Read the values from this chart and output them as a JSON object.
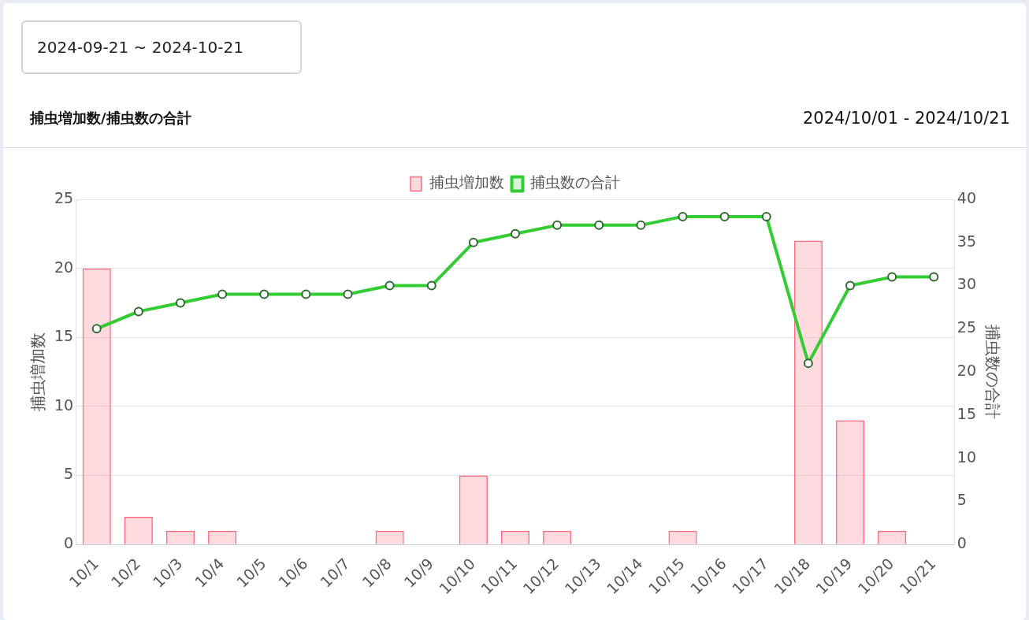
{
  "chart_data": {
    "type": "bar",
    "title": "捕虫増加数/捕虫数の合計",
    "annotations": [
      "2024-09-21 ~ 2024-10-21",
      "2024/10/01 - 2024/10/21"
    ],
    "categories": [
      "10/1",
      "10/2",
      "10/3",
      "10/4",
      "10/5",
      "10/6",
      "10/7",
      "10/8",
      "10/9",
      "10/10",
      "10/11",
      "10/12",
      "10/13",
      "10/14",
      "10/15",
      "10/16",
      "10/17",
      "10/18",
      "10/19",
      "10/20",
      "10/21"
    ],
    "ylabel": "捕虫増加数",
    "y2label": "捕虫数の合計",
    "ylim": [
      0,
      25
    ],
    "yticks": [
      0,
      5,
      10,
      15,
      20,
      25
    ],
    "y2lim": [
      0,
      40
    ],
    "y2ticks": [
      0,
      5,
      10,
      15,
      20,
      25,
      30,
      35,
      40
    ],
    "series": [
      {
        "name": "捕虫増加数",
        "color": "#ff6b7d",
        "values": [
          20,
          2,
          1,
          1,
          0,
          0,
          0,
          1,
          0,
          5,
          1,
          1,
          0,
          0,
          1,
          0,
          0,
          22,
          9,
          1,
          0
        ]
      },
      {
        "name": "捕虫数の合計",
        "type": "line",
        "axis": "y2",
        "color": "#33cc33",
        "values": [
          25,
          27,
          28,
          29,
          29,
          29,
          29,
          30,
          30,
          35,
          36,
          37,
          37,
          37,
          38,
          38,
          38,
          21,
          30,
          31,
          31
        ]
      }
    ],
    "grid": "y",
    "legend": "top",
    "marker": "circle",
    "line_style": "solid"
  }
}
